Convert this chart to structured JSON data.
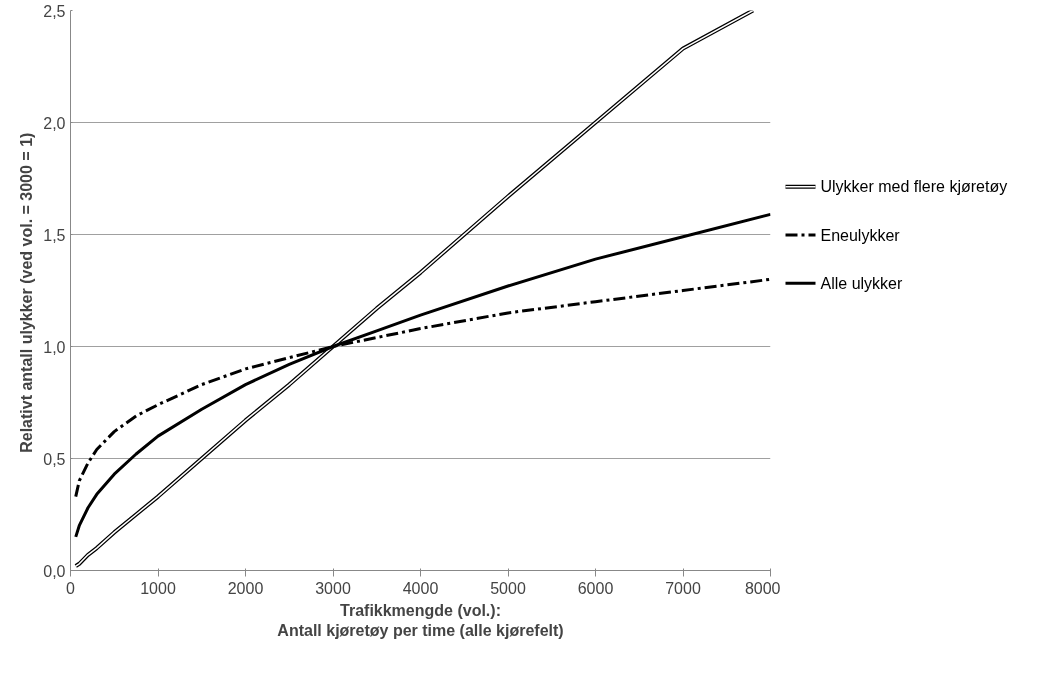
{
  "chart_data": {
    "type": "line",
    "xlabel": "Trafikkmengde (vol.):\nAntall kjøretøy per time (alle kjørefelt)",
    "ylabel": "Relativt antall  ulykker (ved vol. = 3000 = 1)",
    "xlim": [
      0,
      8000
    ],
    "xticks": [
      0,
      1000,
      2000,
      3000,
      4000,
      5000,
      6000,
      7000,
      8000
    ],
    "ylim": [
      0,
      2.5
    ],
    "yticks": [
      {
        "value": 0,
        "label": "0,0"
      },
      {
        "value": 0.5,
        "label": "0,5"
      },
      {
        "value": 1,
        "label": "1,0"
      },
      {
        "value": 1.5,
        "label": "1,5"
      },
      {
        "value": 2,
        "label": "2,0"
      },
      {
        "value": 2.5,
        "label": "2,5"
      }
    ],
    "grid": "y",
    "legend": "right",
    "marker": "none",
    "series": [
      {
        "name": "Ulykker med flere kjøretøy",
        "color": "#000000",
        "line_style": "solid",
        "x": [
          60,
          100,
          200,
          300,
          500,
          750,
          1000,
          1500,
          2000,
          2500,
          3000,
          3500,
          4000,
          5000,
          6000,
          7000,
          7800
        ],
        "values": [
          0.02,
          0.03,
          0.07,
          0.1,
          0.17,
          0.25,
          0.33,
          0.5,
          0.67,
          0.83,
          1.0,
          1.17,
          1.33,
          1.67,
          2.0,
          2.33,
          2.5
        ]
      },
      {
        "name": "Eneulykker",
        "color": "#000000",
        "line_style": "dashed",
        "x": [
          60,
          100,
          200,
          300,
          500,
          750,
          1000,
          1500,
          2000,
          2500,
          3000,
          3500,
          4000,
          5000,
          6000,
          7000,
          8000
        ],
        "values": [
          0.33,
          0.4,
          0.48,
          0.54,
          0.62,
          0.69,
          0.74,
          0.83,
          0.9,
          0.95,
          1.0,
          1.04,
          1.08,
          1.15,
          1.2,
          1.25,
          1.3
        ]
      },
      {
        "name": "Alle ulykker",
        "color": "#000000",
        "line_style": "solid",
        "x": [
          60,
          100,
          200,
          300,
          500,
          750,
          1000,
          1500,
          2000,
          2500,
          3000,
          3500,
          4000,
          5000,
          6000,
          7000,
          8000
        ],
        "values": [
          0.15,
          0.2,
          0.28,
          0.34,
          0.43,
          0.52,
          0.6,
          0.72,
          0.83,
          0.92,
          1.0,
          1.07,
          1.14,
          1.27,
          1.39,
          1.49,
          1.59
        ]
      }
    ]
  }
}
